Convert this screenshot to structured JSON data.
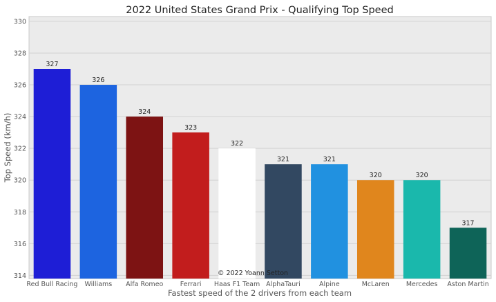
{
  "chart_data": {
    "type": "bar",
    "title": "2022 United States Grand Prix - Qualifying Top Speed",
    "xlabel": "Fastest speed of the 2 drivers from each team",
    "ylabel": "Top Speed (km/h)",
    "categories": [
      "Red Bull Racing",
      "Williams",
      "Alfa Romeo",
      "Ferrari",
      "Haas F1 Team",
      "AlphaTauri",
      "Alpine",
      "McLaren",
      "Mercedes",
      "Aston Martin"
    ],
    "values": [
      327,
      326,
      324,
      323,
      322,
      321,
      321,
      320,
      320,
      317
    ],
    "colors": [
      "#1e1ed6",
      "#1d64e0",
      "#7d1313",
      "#c21d1d",
      "#ffffff",
      "#324861",
      "#2191e0",
      "#e0861d",
      "#1ab8ac",
      "#0e6458"
    ],
    "ylim": [
      313.8,
      330.3
    ],
    "yticks": [
      314,
      316,
      318,
      320,
      322,
      324,
      326,
      328,
      330
    ],
    "grid": true,
    "annotation": "© 2022 Yoann Setton"
  }
}
